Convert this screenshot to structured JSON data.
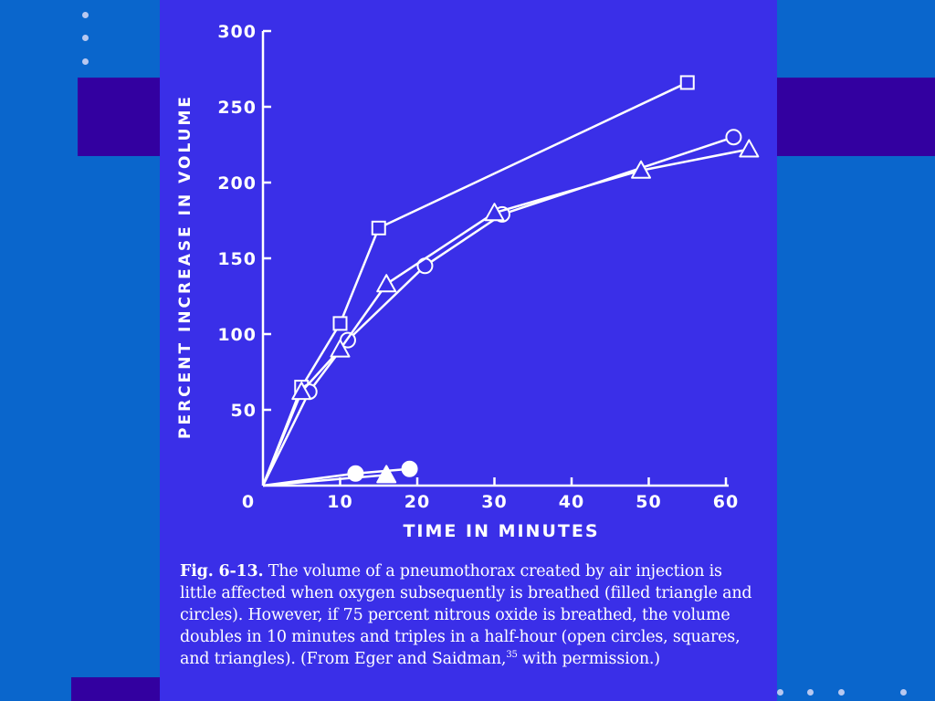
{
  "chart_data": {
    "type": "line",
    "xlabel": "TIME IN MINUTES",
    "ylabel": "PERCENT INCREASE IN VOLUME",
    "xlim": [
      0,
      60
    ],
    "ylim": [
      0,
      300
    ],
    "x_ticks": [
      0,
      10,
      20,
      30,
      40,
      50,
      60
    ],
    "y_ticks": [
      50,
      100,
      150,
      200,
      250,
      300
    ],
    "x_tick_labels": [
      "0",
      "10",
      "20",
      "30",
      "40",
      "50",
      "60"
    ],
    "y_tick_labels": [
      "50",
      "100",
      "150",
      "200",
      "250",
      "300"
    ],
    "grid": false,
    "legend": "none",
    "series": [
      {
        "marker": "open-square",
        "filled": false,
        "x": [
          0,
          5,
          10,
          15,
          55
        ],
        "y": [
          0,
          65,
          107,
          170,
          266
        ]
      },
      {
        "marker": "open-circle",
        "filled": false,
        "x": [
          0,
          6,
          11,
          21,
          31,
          61
        ],
        "y": [
          0,
          62,
          96,
          145,
          179,
          230
        ]
      },
      {
        "marker": "open-triangle",
        "filled": false,
        "x": [
          0,
          5,
          10,
          16,
          30,
          49,
          63
        ],
        "y": [
          0,
          62,
          90,
          133,
          180,
          208,
          222
        ]
      },
      {
        "marker": "filled-circle",
        "filled": true,
        "x": [
          0,
          12,
          19
        ],
        "y": [
          0,
          8,
          11
        ]
      },
      {
        "marker": "filled-triangle",
        "filled": true,
        "x": [
          0,
          16
        ],
        "y": [
          0,
          7
        ]
      }
    ]
  },
  "caption": {
    "label": "Fig. 6-13.",
    "text_before_ref": " The volume of a pneumothorax created by air injection is little affected when oxygen subsequently is breathed (filled triangle and circles). However, if 75 percent nitrous oxide is breathed, the volume doubles in 10 minutes and triples in a half-hour (open circles, squares, and triangles). (From Eger and Saidman,",
    "ref": "35",
    "text_after_ref": " with permission.)"
  },
  "colors": {
    "background": "#0a66cc",
    "band": "#3300a0",
    "slide": "#3a2fe8",
    "ink": "#ffffff"
  }
}
